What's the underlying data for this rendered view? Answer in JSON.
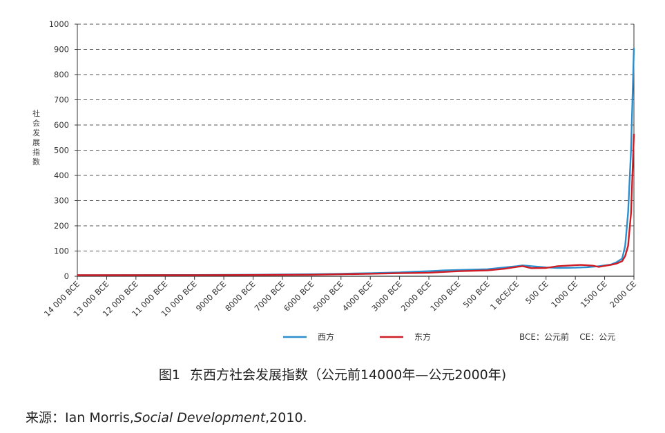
{
  "chart_data": {
    "type": "line",
    "ylabel": "社会发展指数",
    "ylim": [
      0,
      1000
    ],
    "yticks": [
      0,
      100,
      200,
      300,
      400,
      500,
      600,
      700,
      800,
      900,
      1000
    ],
    "grid": true,
    "xticks": [
      {
        "year": -14000,
        "label": "14 000 BCE"
      },
      {
        "year": -13000,
        "label": "13 000 BCE"
      },
      {
        "year": -12000,
        "label": "12 000 BCE"
      },
      {
        "year": -11000,
        "label": "11 000 BCE"
      },
      {
        "year": -10000,
        "label": "10 000 BCE"
      },
      {
        "year": -9000,
        "label": "9000 BCE"
      },
      {
        "year": -8000,
        "label": "8000 BCE"
      },
      {
        "year": -7000,
        "label": "7000 BCE"
      },
      {
        "year": -6000,
        "label": "6000 BCE"
      },
      {
        "year": -5000,
        "label": "5000 BCE"
      },
      {
        "year": -4000,
        "label": "4000 BCE"
      },
      {
        "year": -3000,
        "label": "3000 BCE"
      },
      {
        "year": -2000,
        "label": "2000 BCE"
      },
      {
        "year": -1000,
        "label": "1000 BCE"
      },
      {
        "year": -500,
        "label": "500 BCE"
      },
      {
        "year": 0,
        "label": "1 BCE/CE"
      },
      {
        "year": 500,
        "label": "500 CE"
      },
      {
        "year": 1000,
        "label": "1000 CE"
      },
      {
        "year": 1500,
        "label": "1500 CE"
      },
      {
        "year": 2000,
        "label": "2000 CE"
      }
    ],
    "series": [
      {
        "name": "西方",
        "color": "#2b8fcf",
        "points": [
          [
            -14000,
            4
          ],
          [
            -10000,
            5
          ],
          [
            -8000,
            6
          ],
          [
            -6000,
            8
          ],
          [
            -5000,
            10
          ],
          [
            -4000,
            12
          ],
          [
            -3000,
            15
          ],
          [
            -2500,
            18
          ],
          [
            -2000,
            20
          ],
          [
            -1500,
            23
          ],
          [
            -1000,
            25
          ],
          [
            -500,
            28
          ],
          [
            -200,
            35
          ],
          [
            1,
            40
          ],
          [
            100,
            43
          ],
          [
            250,
            40
          ],
          [
            500,
            35
          ],
          [
            700,
            33
          ],
          [
            1000,
            34
          ],
          [
            1200,
            36
          ],
          [
            1400,
            40
          ],
          [
            1600,
            46
          ],
          [
            1700,
            55
          ],
          [
            1800,
            70
          ],
          [
            1850,
            120
          ],
          [
            1900,
            250
          ],
          [
            1950,
            500
          ],
          [
            2000,
            906
          ]
        ]
      },
      {
        "name": "东方",
        "color": "#d01c24",
        "points": [
          [
            -14000,
            4
          ],
          [
            -10000,
            4
          ],
          [
            -8000,
            5
          ],
          [
            -6000,
            6
          ],
          [
            -5000,
            8
          ],
          [
            -4000,
            10
          ],
          [
            -3000,
            12
          ],
          [
            -2500,
            13
          ],
          [
            -2000,
            14
          ],
          [
            -1500,
            17
          ],
          [
            -1000,
            20
          ],
          [
            -500,
            23
          ],
          [
            -200,
            30
          ],
          [
            1,
            37
          ],
          [
            100,
            40
          ],
          [
            250,
            32
          ],
          [
            500,
            33
          ],
          [
            700,
            40
          ],
          [
            1000,
            44
          ],
          [
            1100,
            45
          ],
          [
            1300,
            42
          ],
          [
            1400,
            37
          ],
          [
            1600,
            45
          ],
          [
            1700,
            50
          ],
          [
            1800,
            60
          ],
          [
            1850,
            80
          ],
          [
            1900,
            120
          ],
          [
            1950,
            250
          ],
          [
            2000,
            565
          ]
        ]
      }
    ],
    "legend_note": "BCE：公元前    CE：公元",
    "legend_placement": "bottom"
  },
  "caption": {
    "label": "图1",
    "title": "东西方社会发展指数（公元前14000年—公元2000年)"
  },
  "source": {
    "prefix": "来源：Ian Morris,",
    "italic": "Social Development",
    "suffix": ",2010."
  }
}
